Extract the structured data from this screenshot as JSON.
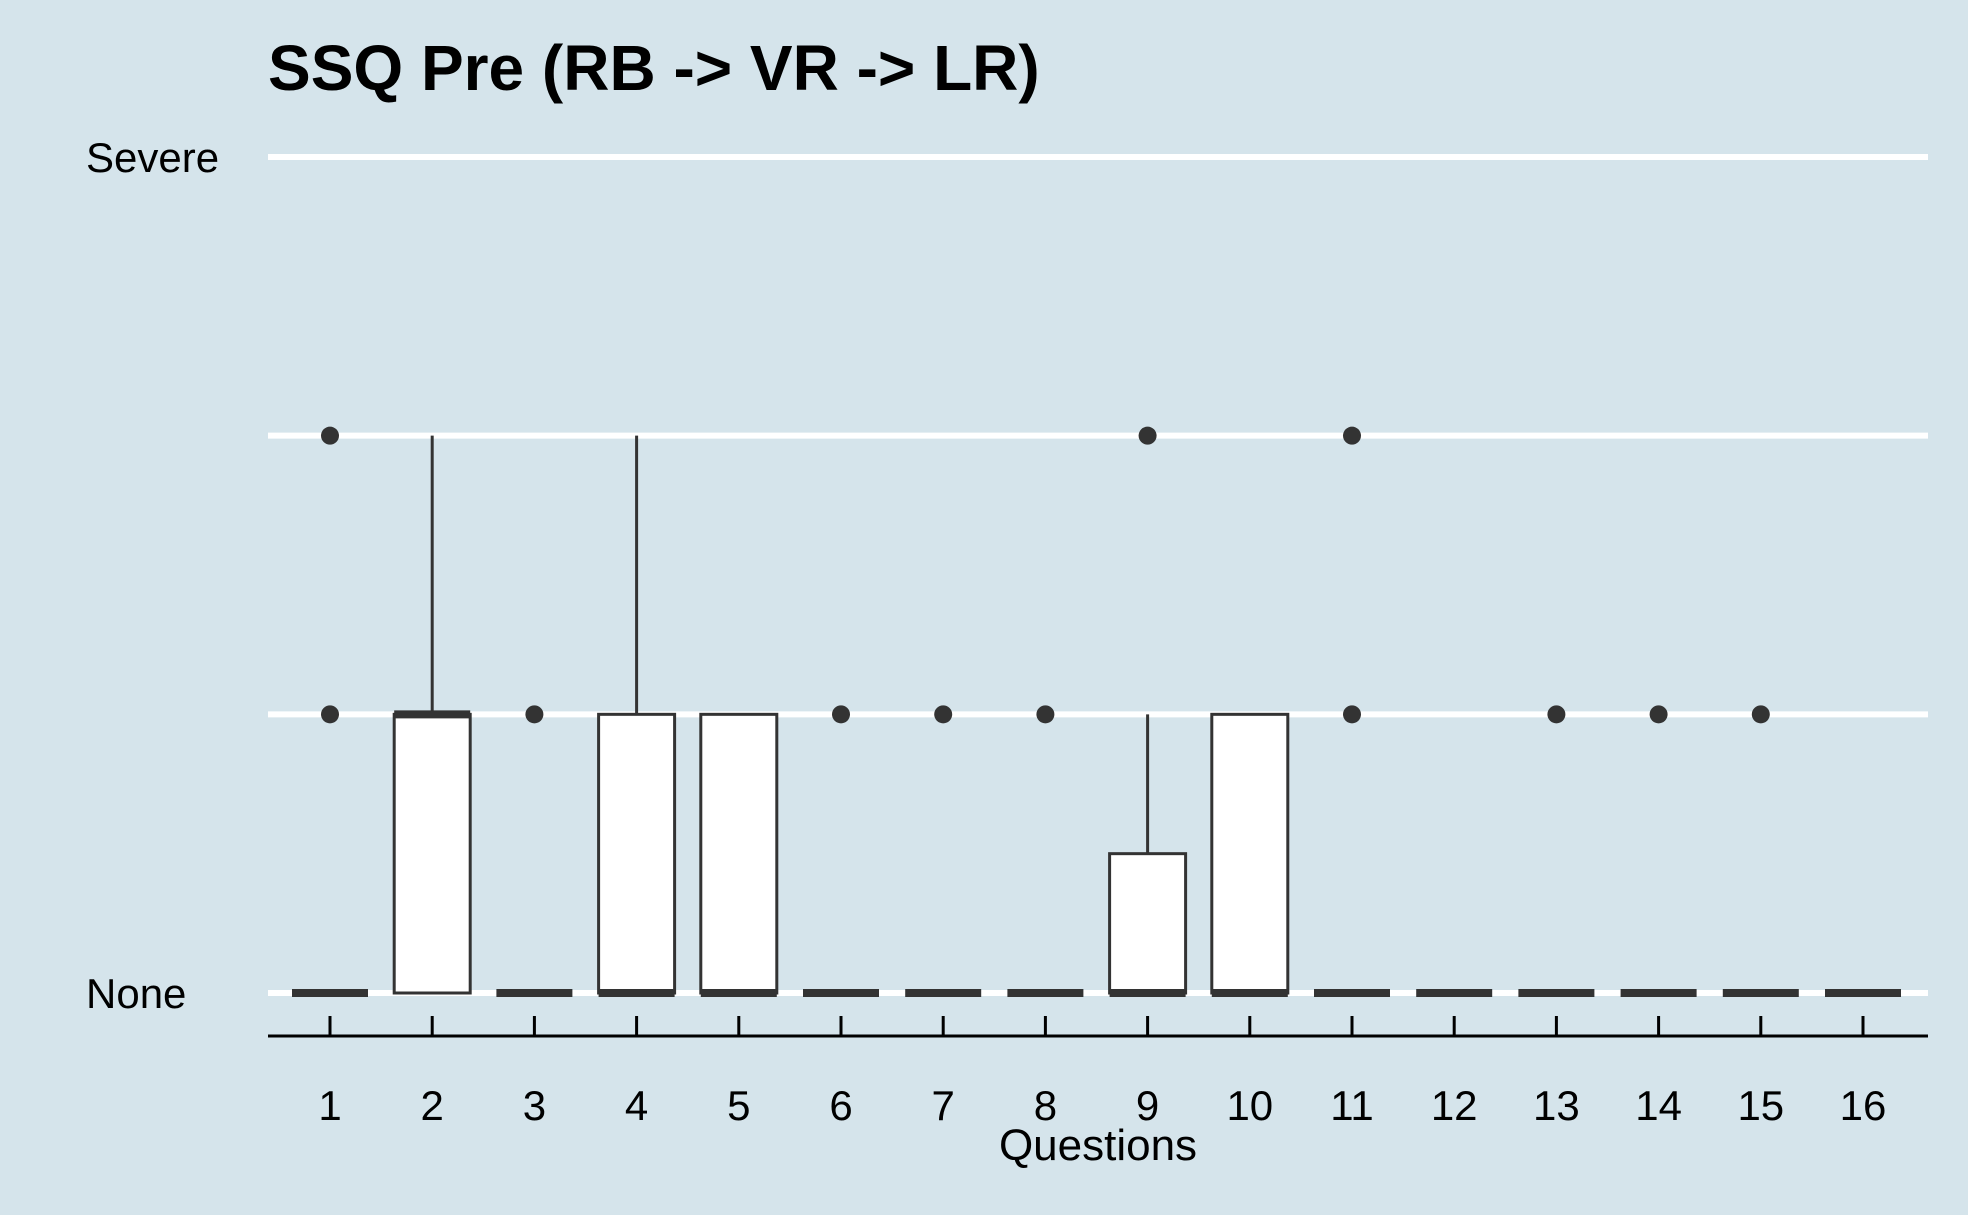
{
  "chart_data": {
    "type": "box",
    "title": "SSQ Pre (RB -> VR -> LR)",
    "xlabel": "Questions",
    "ylabel": "",
    "categories": [
      "1",
      "2",
      "3",
      "4",
      "5",
      "6",
      "7",
      "8",
      "9",
      "10",
      "11",
      "12",
      "13",
      "14",
      "15",
      "16"
    ],
    "ylim": [
      0,
      3
    ],
    "y_ticks": [
      {
        "value": 0,
        "label": "None"
      },
      {
        "value": 1,
        "label": ""
      },
      {
        "value": 2,
        "label": ""
      },
      {
        "value": 3,
        "label": "Severe"
      }
    ],
    "grid": "horizontal",
    "colors": {
      "background": "#d5e4eb",
      "box_fill": "#ffffff",
      "stroke": "#333333",
      "grid": "#ffffff"
    },
    "boxes": [
      {
        "category": "1",
        "q1": 0,
        "median": 0,
        "q3": 0,
        "whisker_low": 0,
        "whisker_high": 0,
        "outliers": [
          1,
          2
        ]
      },
      {
        "category": "2",
        "q1": 0,
        "median": 1,
        "q3": 1,
        "whisker_low": 0,
        "whisker_high": 2,
        "outliers": []
      },
      {
        "category": "3",
        "q1": 0,
        "median": 0,
        "q3": 0,
        "whisker_low": 0,
        "whisker_high": 0,
        "outliers": [
          1
        ]
      },
      {
        "category": "4",
        "q1": 0,
        "median": 0,
        "q3": 1,
        "whisker_low": 0,
        "whisker_high": 2,
        "outliers": []
      },
      {
        "category": "5",
        "q1": 0,
        "median": 0,
        "q3": 1,
        "whisker_low": 0,
        "whisker_high": 1,
        "outliers": []
      },
      {
        "category": "6",
        "q1": 0,
        "median": 0,
        "q3": 0,
        "whisker_low": 0,
        "whisker_high": 0,
        "outliers": [
          1
        ]
      },
      {
        "category": "7",
        "q1": 0,
        "median": 0,
        "q3": 0,
        "whisker_low": 0,
        "whisker_high": 0,
        "outliers": [
          1
        ]
      },
      {
        "category": "8",
        "q1": 0,
        "median": 0,
        "q3": 0,
        "whisker_low": 0,
        "whisker_high": 0,
        "outliers": [
          1
        ]
      },
      {
        "category": "9",
        "q1": 0,
        "median": 0,
        "q3": 0.5,
        "whisker_low": 0,
        "whisker_high": 1,
        "outliers": [
          2
        ]
      },
      {
        "category": "10",
        "q1": 0,
        "median": 0,
        "q3": 1,
        "whisker_low": 0,
        "whisker_high": 1,
        "outliers": []
      },
      {
        "category": "11",
        "q1": 0,
        "median": 0,
        "q3": 0,
        "whisker_low": 0,
        "whisker_high": 0,
        "outliers": [
          1,
          2
        ]
      },
      {
        "category": "12",
        "q1": 0,
        "median": 0,
        "q3": 0,
        "whisker_low": 0,
        "whisker_high": 0,
        "outliers": []
      },
      {
        "category": "13",
        "q1": 0,
        "median": 0,
        "q3": 0,
        "whisker_low": 0,
        "whisker_high": 0,
        "outliers": [
          1
        ]
      },
      {
        "category": "14",
        "q1": 0,
        "median": 0,
        "q3": 0,
        "whisker_low": 0,
        "whisker_high": 0,
        "outliers": [
          1
        ]
      },
      {
        "category": "15",
        "q1": 0,
        "median": 0,
        "q3": 0,
        "whisker_low": 0,
        "whisker_high": 0,
        "outliers": [
          1
        ]
      },
      {
        "category": "16",
        "q1": 0,
        "median": 0,
        "q3": 0,
        "whisker_low": 0,
        "whisker_high": 0,
        "outliers": []
      }
    ]
  }
}
